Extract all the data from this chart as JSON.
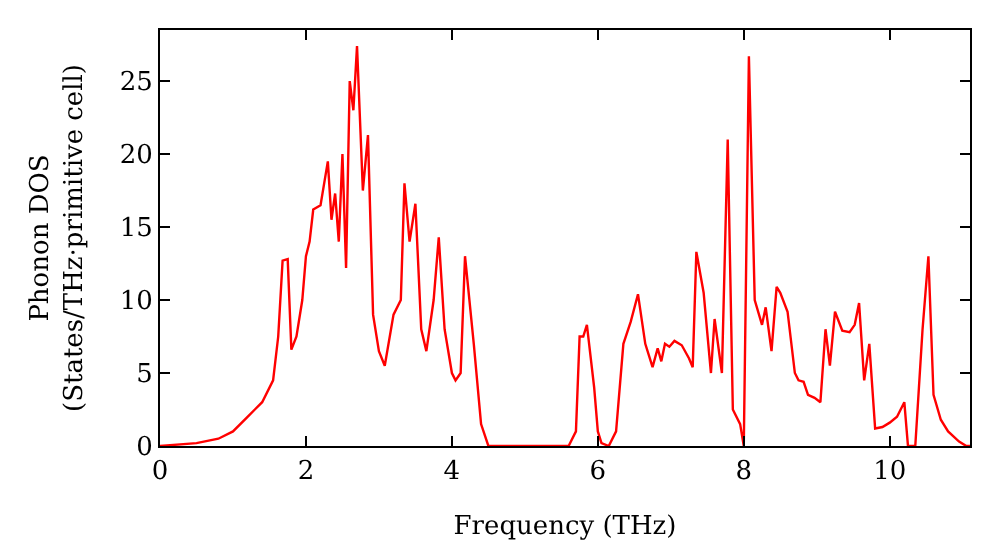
{
  "chart_data": {
    "type": "line",
    "xlabel": "Frequency (THz)",
    "ylabel": "Phonon DOS\n(States/THz·primitive cell)",
    "x": [
      0,
      0.5,
      0.8,
      1.0,
      1.2,
      1.3,
      1.4,
      1.55,
      1.62,
      1.68,
      1.75,
      1.8,
      1.87,
      1.95,
      2.0,
      2.05,
      2.1,
      2.2,
      2.3,
      2.35,
      2.4,
      2.45,
      2.5,
      2.55,
      2.6,
      2.65,
      2.7,
      2.78,
      2.85,
      2.92,
      3.0,
      3.08,
      3.2,
      3.3,
      3.35,
      3.42,
      3.5,
      3.58,
      3.65,
      3.75,
      3.82,
      3.9,
      4.0,
      4.05,
      4.12,
      4.18,
      4.3,
      4.4,
      4.5,
      5.6,
      5.7,
      5.75,
      5.8,
      5.85,
      5.95,
      6.0,
      6.05,
      6.15,
      6.25,
      6.35,
      6.45,
      6.55,
      6.65,
      6.75,
      6.82,
      6.87,
      6.92,
      6.98,
      7.05,
      7.15,
      7.25,
      7.3,
      7.35,
      7.45,
      7.55,
      7.6,
      7.7,
      7.78,
      7.85,
      7.95,
      8.0,
      8.07,
      8.15,
      8.25,
      8.3,
      8.38,
      8.45,
      8.5,
      8.6,
      8.7,
      8.75,
      8.82,
      8.88,
      8.97,
      9.05,
      9.12,
      9.18,
      9.25,
      9.35,
      9.45,
      9.52,
      9.58,
      9.65,
      9.72,
      9.8,
      9.9,
      10.0,
      10.1,
      10.2,
      10.25,
      10.35,
      10.45,
      10.53,
      10.6,
      10.7,
      10.8,
      10.95,
      11.05,
      11.1
    ],
    "series": [
      {
        "color": "#ff0000",
        "values": [
          0,
          0.2,
          0.5,
          1.0,
          2.0,
          2.5,
          3.0,
          4.5,
          7.5,
          12.7,
          12.8,
          6.6,
          7.5,
          10,
          13,
          14,
          16.2,
          16.5,
          19.5,
          15.5,
          17.3,
          14,
          20,
          12.2,
          25,
          23,
          27.4,
          17.5,
          21.3,
          9,
          6.5,
          5.5,
          9,
          10,
          18,
          14,
          16.6,
          8,
          6.5,
          10,
          14.3,
          8,
          5,
          4.5,
          5,
          13,
          7,
          1.5,
          0,
          0,
          1,
          7.5,
          7.5,
          8.3,
          4,
          1,
          0.2,
          0,
          1,
          7,
          8.5,
          10.4,
          7,
          5.4,
          6.7,
          5.8,
          7,
          6.8,
          7.2,
          6.9,
          6,
          5.4,
          13.3,
          10.5,
          5,
          8.7,
          5,
          21,
          2.5,
          1.5,
          0,
          26.7,
          10,
          8.3,
          9.5,
          6.5,
          10.9,
          10.5,
          9.2,
          5,
          4.5,
          4.4,
          3.5,
          3.3,
          3.0,
          8,
          5.5,
          9.2,
          7.9,
          7.8,
          8.3,
          9.8,
          4.5,
          7,
          1.2,
          1.3,
          1.6,
          2.0,
          3.0,
          0,
          0,
          8,
          13,
          3.5,
          1.8,
          1,
          0.3,
          0,
          0
        ]
      }
    ],
    "xlim": [
      0,
      11.1
    ],
    "ylim": [
      0,
      28.5
    ],
    "xticks": [
      0,
      2,
      4,
      6,
      8,
      10
    ],
    "yticks": [
      0,
      5,
      10,
      15,
      20,
      25
    ],
    "legend": false,
    "marker": "none",
    "line_style": "solid"
  }
}
